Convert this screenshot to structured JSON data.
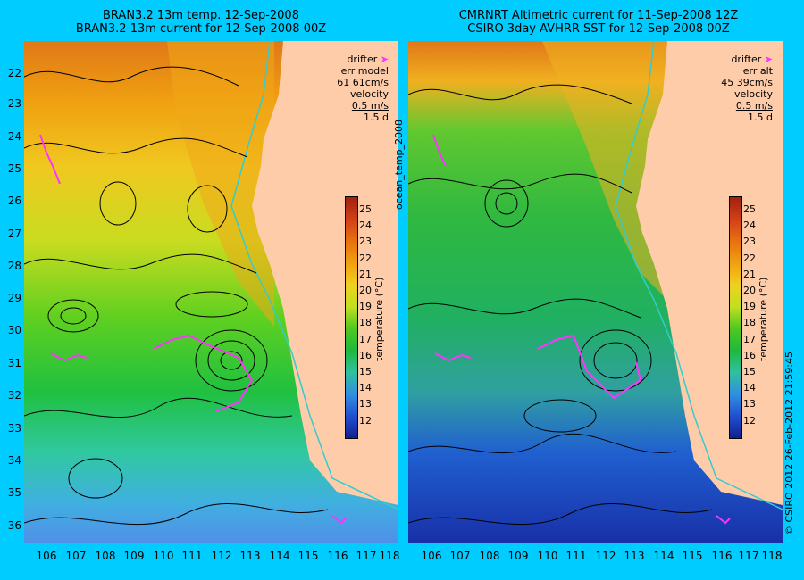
{
  "left_title": {
    "line1": "BRAN3.2 13m temp. 12-Sep-2008",
    "line2": "BRAN3.2 13m current for 12-Sep-2008 00Z"
  },
  "right_title": {
    "line1": "CMRNRT Altimetric current for 11-Sep-2008 12Z",
    "line2": "CSIRO 3day AVHRR SST for 12-Sep-2008 00Z"
  },
  "lat_labels": [
    "22",
    "23",
    "24",
    "25",
    "26",
    "27",
    "28",
    "29",
    "30",
    "31",
    "32",
    "33",
    "34",
    "35",
    "36"
  ],
  "lon_labels": [
    "106",
    "107",
    "108",
    "109",
    "110",
    "111",
    "112",
    "113",
    "114",
    "115",
    "116",
    "117",
    "118"
  ],
  "left_legend": {
    "drifter": "drifter",
    "err": "err model",
    "err_val": "61 61cm/s",
    "velocity": "velocity",
    "scale": "0.5 m/s",
    "days": "1.5 d"
  },
  "right_legend": {
    "drifter": "drifter",
    "err": "err alt",
    "err_val": "45 39cm/s",
    "velocity": "velocity",
    "scale": "0.5 m/s",
    "days": "1.5 d"
  },
  "colorbar": {
    "ticks": [
      "25",
      "24",
      "23",
      "22",
      "21",
      "20",
      "19",
      "18",
      "17",
      "16",
      "15",
      "14",
      "13",
      "12"
    ],
    "label": "temperature (°C)"
  },
  "side_label": "ocean_temp_2008",
  "credit": "© CSIRO 2012   26-Feb-2012 21:59:45",
  "colors": {
    "background": "#00ccff",
    "land": "#ffccaa",
    "drifter": "#ff33ff",
    "coast_line": "#33cccc"
  }
}
